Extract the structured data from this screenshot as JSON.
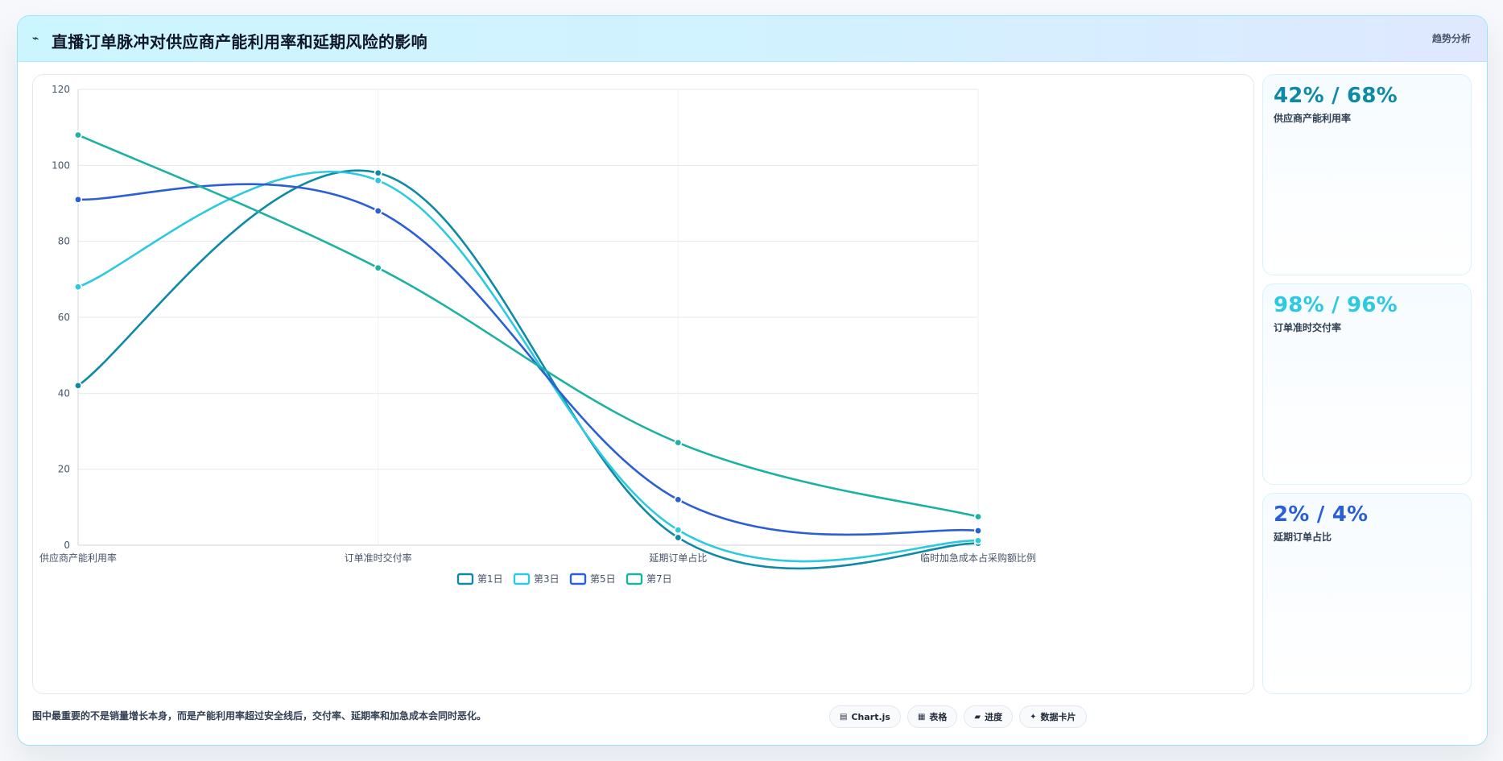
{
  "header": {
    "icon": "trend-icon",
    "title": "直播订单脉冲对供应商产能利用率和延期风险的影响",
    "right_label": "趋势分析"
  },
  "chart_data": {
    "type": "line",
    "title": "",
    "xlabel": "",
    "ylabel": "",
    "categories": [
      "供应商产能利用率",
      "订单准时交付率",
      "延期订单占比",
      "临时加急成本占采购额比例"
    ],
    "ylim": [
      0,
      120
    ],
    "yticks": [
      0,
      20,
      40,
      60,
      80,
      100,
      120
    ],
    "grid": true,
    "legend_position": "bottom-center",
    "series": [
      {
        "name": "第1日",
        "color": "#0e8aa6",
        "values": [
          42,
          98,
          2,
          0.5
        ]
      },
      {
        "name": "第3日",
        "color": "#2cc9e0",
        "values": [
          68,
          96,
          4,
          1.2
        ]
      },
      {
        "name": "第5日",
        "color": "#2b5fd6",
        "values": [
          91,
          88,
          12,
          3.8
        ]
      },
      {
        "name": "第7日",
        "color": "#1cb2a3",
        "values": [
          108,
          73,
          27,
          7.5
        ]
      }
    ]
  },
  "kpis": [
    {
      "value": "42% / 68%",
      "label": "供应商产能利用率",
      "color": "#0e8aa6"
    },
    {
      "value": "98% / 96%",
      "label": "订单准时交付率",
      "color": "#2cc9e0"
    },
    {
      "value": "2% / 4%",
      "label": "延期订单占比",
      "color": "#2b5fd6"
    }
  ],
  "footer": {
    "note": "图中最重要的不是销量增长本身，而是产能利用率超过安全线后，交付率、延期率和加急成本会同时恶化。",
    "actions": [
      {
        "label": "Chart.js",
        "icon": "chart-icon"
      },
      {
        "label": "表格",
        "icon": "table-icon"
      },
      {
        "label": "进度",
        "icon": "progress-icon"
      },
      {
        "label": "数据卡片",
        "icon": "card-icon"
      }
    ]
  }
}
